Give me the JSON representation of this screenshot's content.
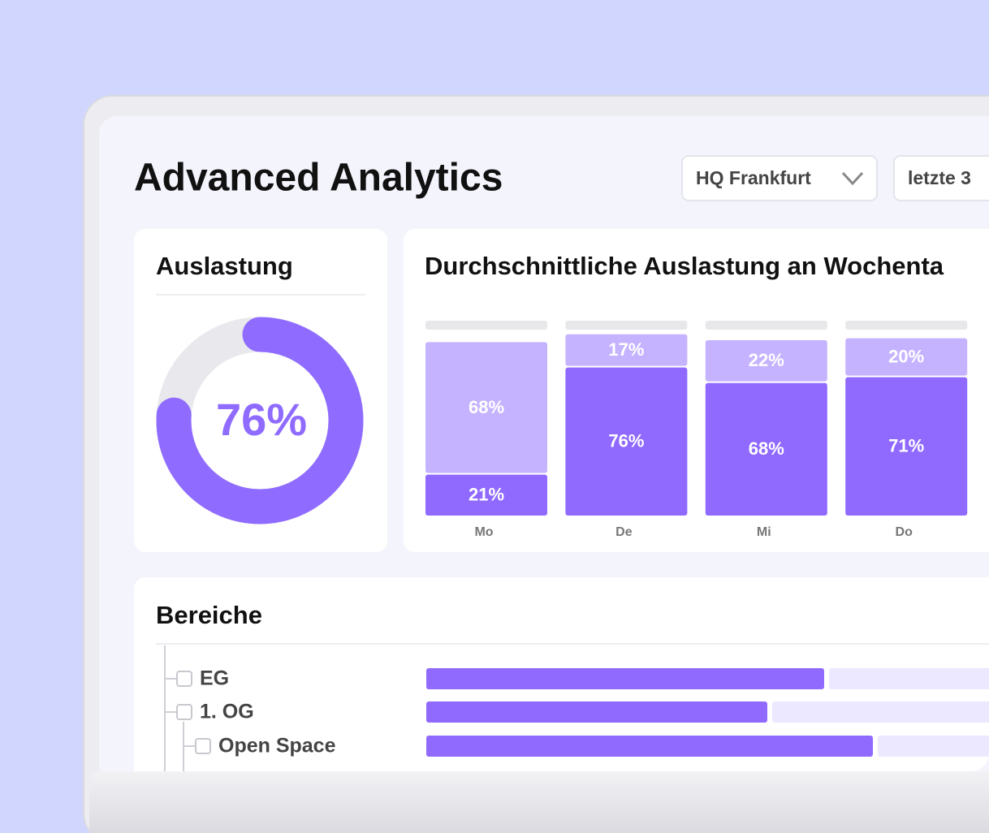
{
  "header": {
    "title": "Advanced Analytics"
  },
  "filters": [
    "HQ Frankfurt",
    "letzte 3"
  ],
  "occupancy": {
    "title": "Auslastung",
    "value": 76,
    "value_label": "76%"
  },
  "chart_data": {
    "type": "bar",
    "stacked": true,
    "title": "Durchschnittliche Auslastung an Wochenta",
    "categories": [
      "Mo",
      "De",
      "Mi",
      "Do"
    ],
    "ylim": [
      0,
      100
    ],
    "series": [
      {
        "color": "#9069ff",
        "values": [
          21,
          76,
          68,
          71
        ],
        "value_labels": [
          "21%",
          "76%",
          "68%",
          "71%"
        ]
      },
      {
        "color": "#c5b3ff",
        "values": [
          68,
          17,
          22,
          20
        ],
        "value_labels": [
          "68%",
          "17%",
          "22%",
          "20%"
        ]
      }
    ]
  },
  "areas": {
    "title": "Bereiche",
    "items": [
      {
        "label": "EG",
        "level": 0,
        "value": 49
      },
      {
        "label": "1. OG",
        "level": 0,
        "value": 42
      },
      {
        "label": "Open Space",
        "level": 1,
        "value": 55
      }
    ]
  }
}
